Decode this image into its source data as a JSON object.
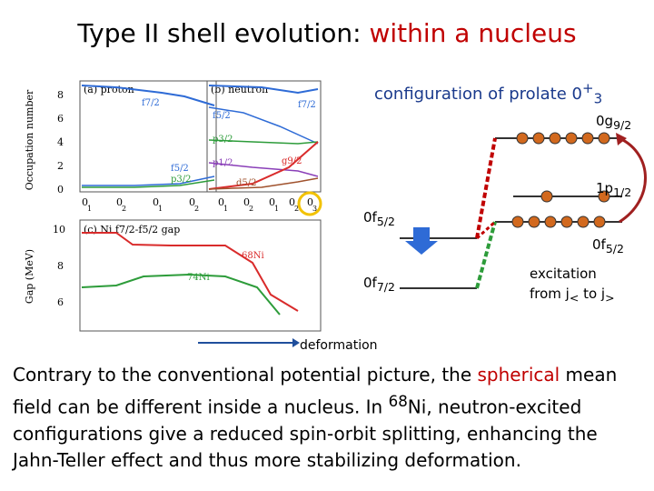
{
  "title": {
    "prefix": "Type II shell evolution: ",
    "highlight": "within a nucleus"
  },
  "config": {
    "title_text": "configuration of prolate 0",
    "title_sup": "+",
    "title_sub": "3",
    "levels": {
      "g92_main": "0g",
      "g92_sub": "9/2",
      "p12_main": "1p",
      "p12_sub": "1/2",
      "f52_left_main": "0f",
      "f52_left_sub": "5/2",
      "f52_right_main": "0f",
      "f52_right_sub": "5/2",
      "f72_main": "0f",
      "f72_sub": "7/2"
    },
    "excitation_line1": "excitation",
    "excitation_line2_a": "from j",
    "excitation_sub1": "<",
    "excitation_line2_b": " to j",
    "excitation_sub2": ">"
  },
  "deformation_label": "deformation",
  "paragraph": {
    "part1": "Contrary to the conventional potential picture, the ",
    "highlight": "spherical",
    "part2": " mean field can be different inside a nucleus. In ",
    "sup": "68",
    "part3": "Ni, neutron-excited configurations give a reduced spin-orbit splitting, enhancing the Jahn-Teller effect and thus more stabilizing deformation."
  },
  "plots": {
    "ylabel_top": "Occupation number",
    "ylabel_bottom": "Gap (MeV)",
    "panel_a": "(a) proton",
    "panel_b": "(b) neutron",
    "panel_c": "(c) Ni f7/2-f5/2 gap",
    "yticks_top": [
      "0",
      "2",
      "4",
      "6",
      "8"
    ],
    "yticks_bottom": [
      "6",
      "8",
      "10"
    ],
    "xticks_a": [
      "0",
      "0",
      "0",
      "0"
    ],
    "xticks_a_sub": [
      "1",
      "2",
      "1",
      "2"
    ],
    "xticks_b": [
      "0",
      "0",
      "0",
      "0",
      "0"
    ],
    "xticks_b_sub": [
      "1",
      "2",
      "1",
      "2",
      "3"
    ],
    "proton_labels": {
      "f72": "f7/2",
      "f52": "f5/2",
      "p32": "p3/2"
    },
    "neutron_labels": {
      "f72": "f7/2",
      "f52": "f5/2",
      "p32": "p3/2",
      "p12": "p1/2",
      "g92": "g9/2",
      "d52": "d5/2"
    },
    "nucleus_labels": {
      "ni68": "68Ni",
      "ni74": "74Ni"
    }
  },
  "colors": {
    "red": "#c00000",
    "blue": "#2e6bd6",
    "green": "#2d9c3a",
    "purple": "#8a3fb8",
    "brown": "#a0522d",
    "orbit": "#d2691e"
  }
}
